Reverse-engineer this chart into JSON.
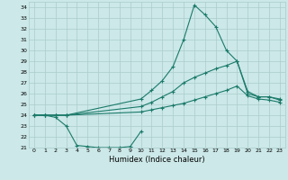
{
  "xlabel": "Humidex (Indice chaleur)",
  "bg_color": "#cce8e8",
  "grid_color": "#aacccc",
  "line_color": "#1a7a6a",
  "line1_x": [
    0,
    1,
    2,
    3,
    10,
    11,
    12,
    13,
    14,
    15,
    16,
    17,
    18,
    19,
    20,
    21,
    22,
    23
  ],
  "line1_y": [
    24,
    24,
    24,
    24,
    25.5,
    26.3,
    27.2,
    28.5,
    31.0,
    34.2,
    33.3,
    32.2,
    30.0,
    29.0,
    26.0,
    25.7,
    25.7,
    25.5
  ],
  "line2_x": [
    0,
    1,
    2,
    3,
    10,
    11,
    12,
    13,
    14,
    15,
    16,
    17,
    18,
    19,
    20,
    21,
    22,
    23
  ],
  "line2_y": [
    24,
    24,
    24,
    24,
    24.8,
    25.2,
    25.7,
    26.2,
    27.0,
    27.5,
    27.9,
    28.3,
    28.6,
    29.0,
    26.2,
    25.7,
    25.7,
    25.4
  ],
  "line3_x": [
    0,
    1,
    2,
    3,
    10,
    11,
    12,
    13,
    14,
    15,
    16,
    17,
    18,
    19,
    20,
    21,
    22,
    23
  ],
  "line3_y": [
    24,
    24,
    24,
    24,
    24.3,
    24.5,
    24.7,
    24.9,
    25.1,
    25.4,
    25.7,
    26.0,
    26.3,
    26.7,
    25.8,
    25.5,
    25.4,
    25.2
  ],
  "line4_x": [
    0,
    1,
    2,
    3,
    4,
    5,
    6,
    7,
    8,
    9,
    10
  ],
  "line4_y": [
    24,
    24,
    23.8,
    23.0,
    21.2,
    21.1,
    21.0,
    21.0,
    21.0,
    21.1,
    22.5
  ],
  "xlim": [
    -0.5,
    23.5
  ],
  "ylim": [
    21,
    34.5
  ],
  "yticks": [
    21,
    22,
    23,
    24,
    25,
    26,
    27,
    28,
    29,
    30,
    31,
    32,
    33,
    34
  ],
  "xticks": [
    0,
    1,
    2,
    3,
    4,
    5,
    6,
    7,
    8,
    9,
    10,
    11,
    12,
    13,
    14,
    15,
    16,
    17,
    18,
    19,
    20,
    21,
    22,
    23
  ],
  "figsize": [
    3.2,
    2.0
  ],
  "dpi": 100
}
